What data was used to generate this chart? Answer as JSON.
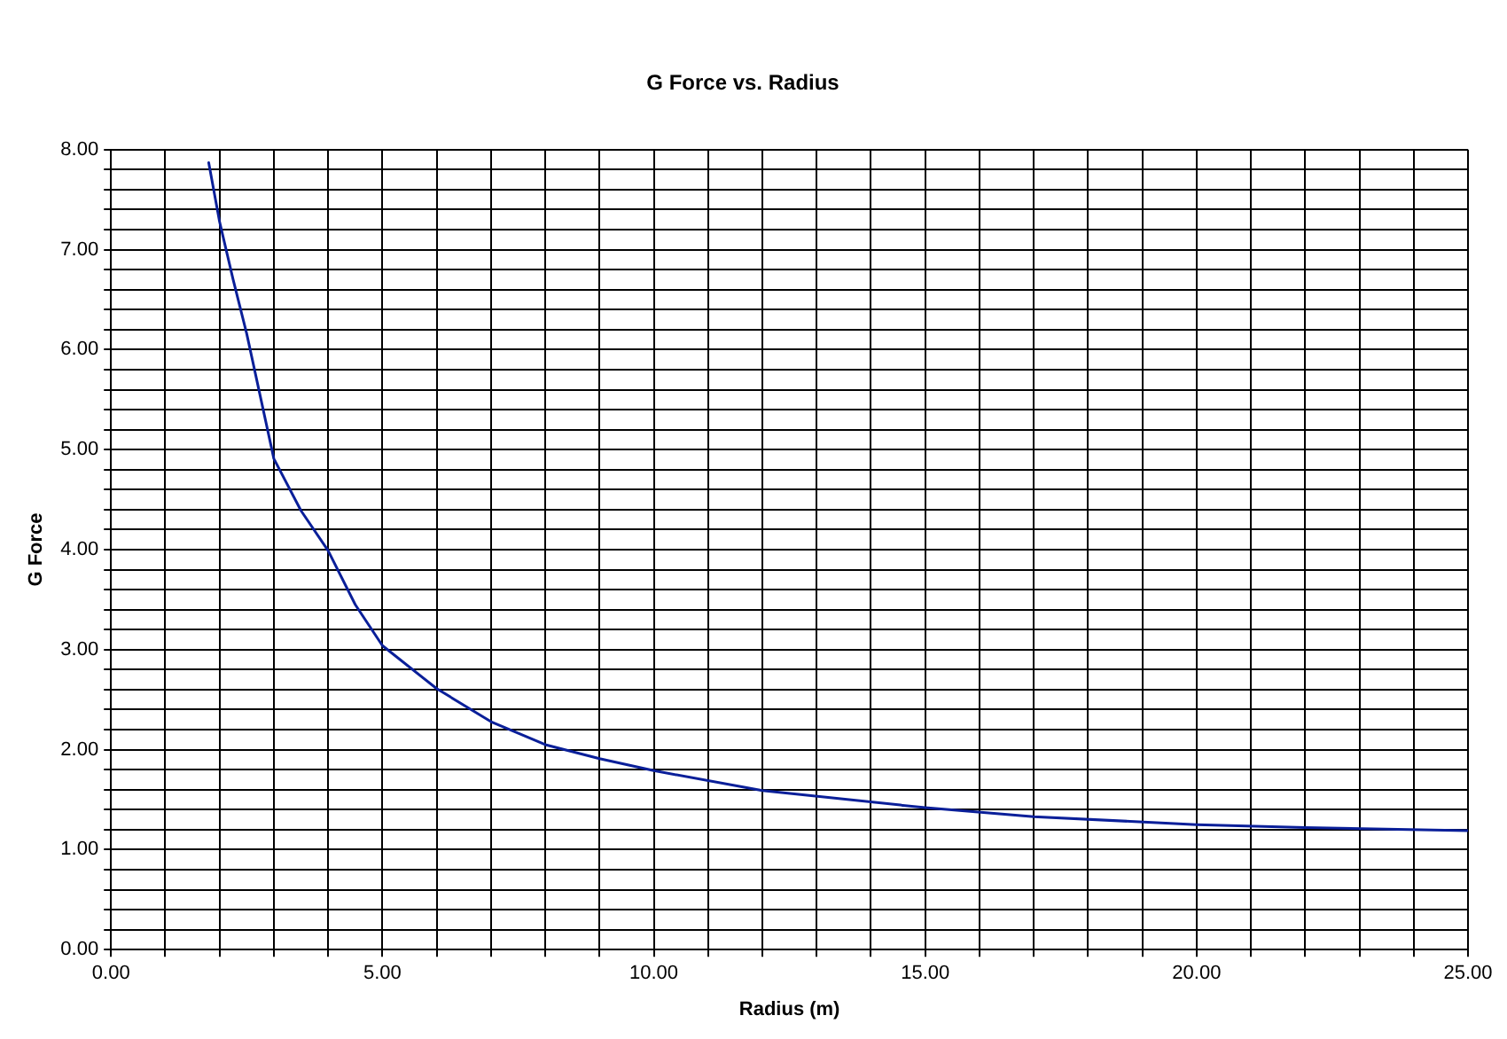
{
  "chart_data": {
    "type": "line",
    "title": "G Force vs. Radius",
    "xlabel": "Radius (m)",
    "ylabel": "G Force",
    "x": [
      1.8,
      2,
      2.25,
      2.5,
      3,
      3.5,
      4,
      4.5,
      5,
      6,
      7,
      8,
      9,
      10,
      12,
      15,
      17,
      20,
      22,
      25
    ],
    "series": [
      {
        "color": "#0a1f99",
        "values": [
          7.87,
          7.28,
          6.7,
          6.16,
          4.91,
          4.39,
          3.99,
          3.45,
          3.04,
          2.61,
          2.28,
          2.05,
          1.91,
          1.79,
          1.59,
          1.42,
          1.33,
          1.25,
          1.22,
          1.19
        ]
      }
    ],
    "xlim": [
      0,
      25
    ],
    "xticks": [
      {
        "value": 0,
        "label": "0.00"
      },
      {
        "value": 1,
        "label": null
      },
      {
        "value": 2,
        "label": null
      },
      {
        "value": 3,
        "label": null
      },
      {
        "value": 4,
        "label": null
      },
      {
        "value": 5,
        "label": "5.00"
      },
      {
        "value": 6,
        "label": null
      },
      {
        "value": 7,
        "label": null
      },
      {
        "value": 8,
        "label": null
      },
      {
        "value": 9,
        "label": null
      },
      {
        "value": 10,
        "label": "10.00"
      },
      {
        "value": 11,
        "label": null
      },
      {
        "value": 12,
        "label": null
      },
      {
        "value": 13,
        "label": null
      },
      {
        "value": 14,
        "label": null
      },
      {
        "value": 15,
        "label": "15.00"
      },
      {
        "value": 16,
        "label": null
      },
      {
        "value": 17,
        "label": null
      },
      {
        "value": 18,
        "label": null
      },
      {
        "value": 19,
        "label": null
      },
      {
        "value": 20,
        "label": "20.00"
      },
      {
        "value": 21,
        "label": null
      },
      {
        "value": 22,
        "label": null
      },
      {
        "value": 23,
        "label": null
      },
      {
        "value": 24,
        "label": null
      },
      {
        "value": 25,
        "label": "25.00"
      }
    ],
    "ylim": [
      0,
      8
    ],
    "yticks": [
      {
        "value": 0,
        "label": "0.00"
      },
      {
        "value": 0.2,
        "label": null
      },
      {
        "value": 0.4,
        "label": null
      },
      {
        "value": 0.6,
        "label": null
      },
      {
        "value": 0.8,
        "label": null
      },
      {
        "value": 1,
        "label": "1.00"
      },
      {
        "value": 1.2,
        "label": null
      },
      {
        "value": 1.4,
        "label": null
      },
      {
        "value": 1.6,
        "label": null
      },
      {
        "value": 1.8,
        "label": null
      },
      {
        "value": 2,
        "label": "2.00"
      },
      {
        "value": 2.2,
        "label": null
      },
      {
        "value": 2.4,
        "label": null
      },
      {
        "value": 2.6,
        "label": null
      },
      {
        "value": 2.8,
        "label": null
      },
      {
        "value": 3,
        "label": "3.00"
      },
      {
        "value": 3.2,
        "label": null
      },
      {
        "value": 3.4,
        "label": null
      },
      {
        "value": 3.6,
        "label": null
      },
      {
        "value": 3.8,
        "label": null
      },
      {
        "value": 4,
        "label": "4.00"
      },
      {
        "value": 4.2,
        "label": null
      },
      {
        "value": 4.4,
        "label": null
      },
      {
        "value": 4.6,
        "label": null
      },
      {
        "value": 4.8,
        "label": null
      },
      {
        "value": 5,
        "label": "5.00"
      },
      {
        "value": 5.2,
        "label": null
      },
      {
        "value": 5.4,
        "label": null
      },
      {
        "value": 5.6,
        "label": null
      },
      {
        "value": 5.8,
        "label": null
      },
      {
        "value": 6,
        "label": "6.00"
      },
      {
        "value": 6.2,
        "label": null
      },
      {
        "value": 6.4,
        "label": null
      },
      {
        "value": 6.6,
        "label": null
      },
      {
        "value": 6.8,
        "label": null
      },
      {
        "value": 7,
        "label": "7.00"
      },
      {
        "value": 7.2,
        "label": null
      },
      {
        "value": 7.4,
        "label": null
      },
      {
        "value": 7.6,
        "label": null
      },
      {
        "value": 7.8,
        "label": null
      },
      {
        "value": 8,
        "label": "8.00"
      }
    ],
    "grid": true,
    "legend": false,
    "marker": "none",
    "line_style": "solid"
  }
}
